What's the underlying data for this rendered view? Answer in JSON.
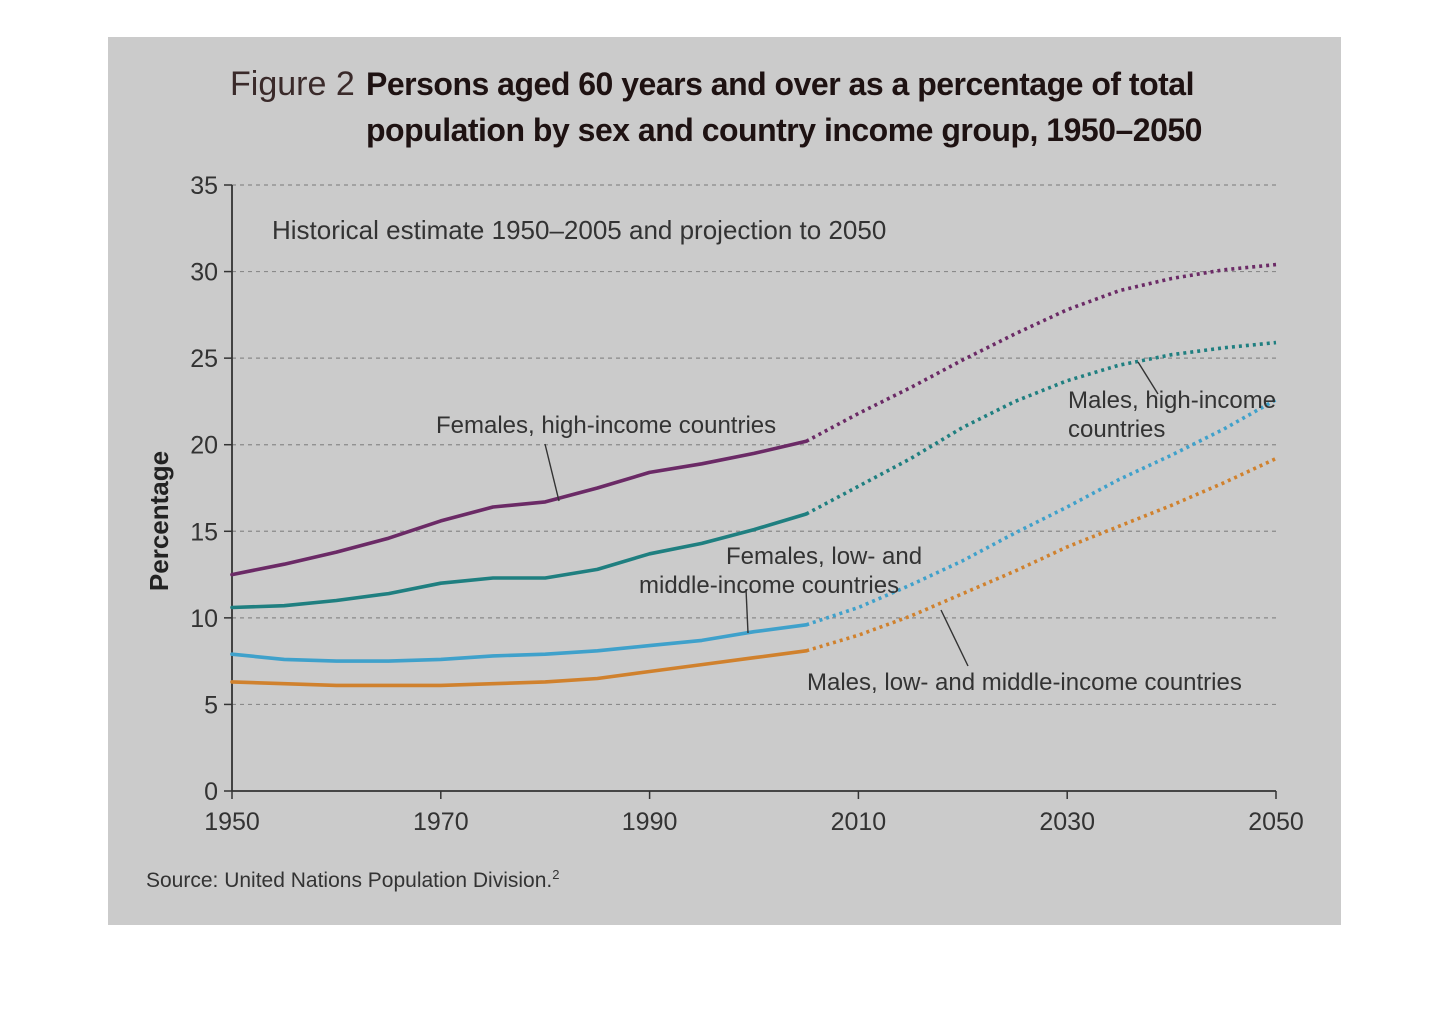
{
  "figure": {
    "title_prefix": "Figure 2",
    "title_line1": "Persons aged 60 years and over as a percentage of total",
    "title_line2": "population by sex and country income group, 1950–2050",
    "subtitle": "Historical estimate 1950–2005 and projection to 2050",
    "source": "Source: United Nations Population Division.",
    "source_sup": "2"
  },
  "chart_data": {
    "type": "line",
    "title": "Persons aged 60 years and over as a percentage of total population by sex and country income group, 1950–2050",
    "subtitle": "Historical estimate 1950–2005 and projection to 2050",
    "xlabel": "",
    "ylabel": "Percentage",
    "xlim": [
      1950,
      2050
    ],
    "ylim": [
      0,
      35
    ],
    "xticks": [
      1950,
      1970,
      1990,
      2010,
      2030,
      2050
    ],
    "yticks": [
      0,
      5,
      10,
      15,
      20,
      25,
      30,
      35
    ],
    "grid": "horizontal dashed",
    "historical_end": 2005,
    "series": [
      {
        "name": "Females, high-income countries",
        "color": "#6b2a66",
        "historical": [
          [
            1950,
            12.5
          ],
          [
            1955,
            13.1
          ],
          [
            1960,
            13.8
          ],
          [
            1965,
            14.6
          ],
          [
            1970,
            15.6
          ],
          [
            1975,
            16.4
          ],
          [
            1980,
            16.7
          ],
          [
            1985,
            17.5
          ],
          [
            1990,
            18.4
          ],
          [
            1995,
            18.9
          ],
          [
            2000,
            19.5
          ],
          [
            2005,
            20.2
          ]
        ],
        "projection": [
          [
            2005,
            20.2
          ],
          [
            2010,
            21.8
          ],
          [
            2015,
            23.3
          ],
          [
            2020,
            24.9
          ],
          [
            2025,
            26.4
          ],
          [
            2030,
            27.8
          ],
          [
            2035,
            28.9
          ],
          [
            2040,
            29.6
          ],
          [
            2045,
            30.1
          ],
          [
            2050,
            30.4
          ]
        ]
      },
      {
        "name": "Males, high-income countries",
        "color": "#1f7f80",
        "historical": [
          [
            1950,
            10.6
          ],
          [
            1955,
            10.7
          ],
          [
            1960,
            11.0
          ],
          [
            1965,
            11.4
          ],
          [
            1970,
            12.0
          ],
          [
            1975,
            12.3
          ],
          [
            1980,
            12.3
          ],
          [
            1985,
            12.8
          ],
          [
            1990,
            13.7
          ],
          [
            1995,
            14.3
          ],
          [
            2000,
            15.1
          ],
          [
            2005,
            16.0
          ]
        ],
        "projection": [
          [
            2005,
            16.0
          ],
          [
            2010,
            17.6
          ],
          [
            2015,
            19.2
          ],
          [
            2020,
            21.0
          ],
          [
            2025,
            22.5
          ],
          [
            2030,
            23.7
          ],
          [
            2035,
            24.6
          ],
          [
            2040,
            25.2
          ],
          [
            2045,
            25.6
          ],
          [
            2050,
            25.9
          ]
        ]
      },
      {
        "name": "Females, low- and middle-income countries",
        "color": "#3fa1cb",
        "historical": [
          [
            1950,
            7.9
          ],
          [
            1955,
            7.6
          ],
          [
            1960,
            7.5
          ],
          [
            1965,
            7.5
          ],
          [
            1970,
            7.6
          ],
          [
            1975,
            7.8
          ],
          [
            1980,
            7.9
          ],
          [
            1985,
            8.1
          ],
          [
            1990,
            8.4
          ],
          [
            1995,
            8.7
          ],
          [
            2000,
            9.2
          ],
          [
            2005,
            9.6
          ]
        ],
        "projection": [
          [
            2005,
            9.6
          ],
          [
            2010,
            10.6
          ],
          [
            2015,
            11.9
          ],
          [
            2020,
            13.3
          ],
          [
            2025,
            14.9
          ],
          [
            2030,
            16.4
          ],
          [
            2035,
            18.0
          ],
          [
            2040,
            19.4
          ],
          [
            2045,
            20.9
          ],
          [
            2050,
            22.6
          ]
        ]
      },
      {
        "name": "Males, low- and middle-income countries",
        "color": "#d0812d",
        "historical": [
          [
            1950,
            6.3
          ],
          [
            1955,
            6.2
          ],
          [
            1960,
            6.1
          ],
          [
            1965,
            6.1
          ],
          [
            1970,
            6.1
          ],
          [
            1975,
            6.2
          ],
          [
            1980,
            6.3
          ],
          [
            1985,
            6.5
          ],
          [
            1990,
            6.9
          ],
          [
            1995,
            7.3
          ],
          [
            2000,
            7.7
          ],
          [
            2005,
            8.1
          ]
        ],
        "projection": [
          [
            2005,
            8.1
          ],
          [
            2010,
            9.0
          ],
          [
            2015,
            10.1
          ],
          [
            2020,
            11.4
          ],
          [
            2025,
            12.7
          ],
          [
            2030,
            14.1
          ],
          [
            2035,
            15.3
          ],
          [
            2040,
            16.5
          ],
          [
            2045,
            17.8
          ],
          [
            2050,
            19.2
          ]
        ]
      }
    ],
    "annotations": [
      {
        "text": "Females, high-income countries",
        "target": "Females, high-income countries"
      },
      {
        "text": "Males, high-income countries",
        "lines": [
          "Males, high-income",
          "countries"
        ],
        "target": "Males, high-income countries"
      },
      {
        "text": "Females, low- and middle-income countries",
        "lines": [
          "Females, low- and",
          "middle-income countries"
        ],
        "target": "Females, low- and middle-income countries"
      },
      {
        "text": "Males, low- and middle-income countries",
        "target": "Males, low- and middle-income countries"
      }
    ]
  }
}
